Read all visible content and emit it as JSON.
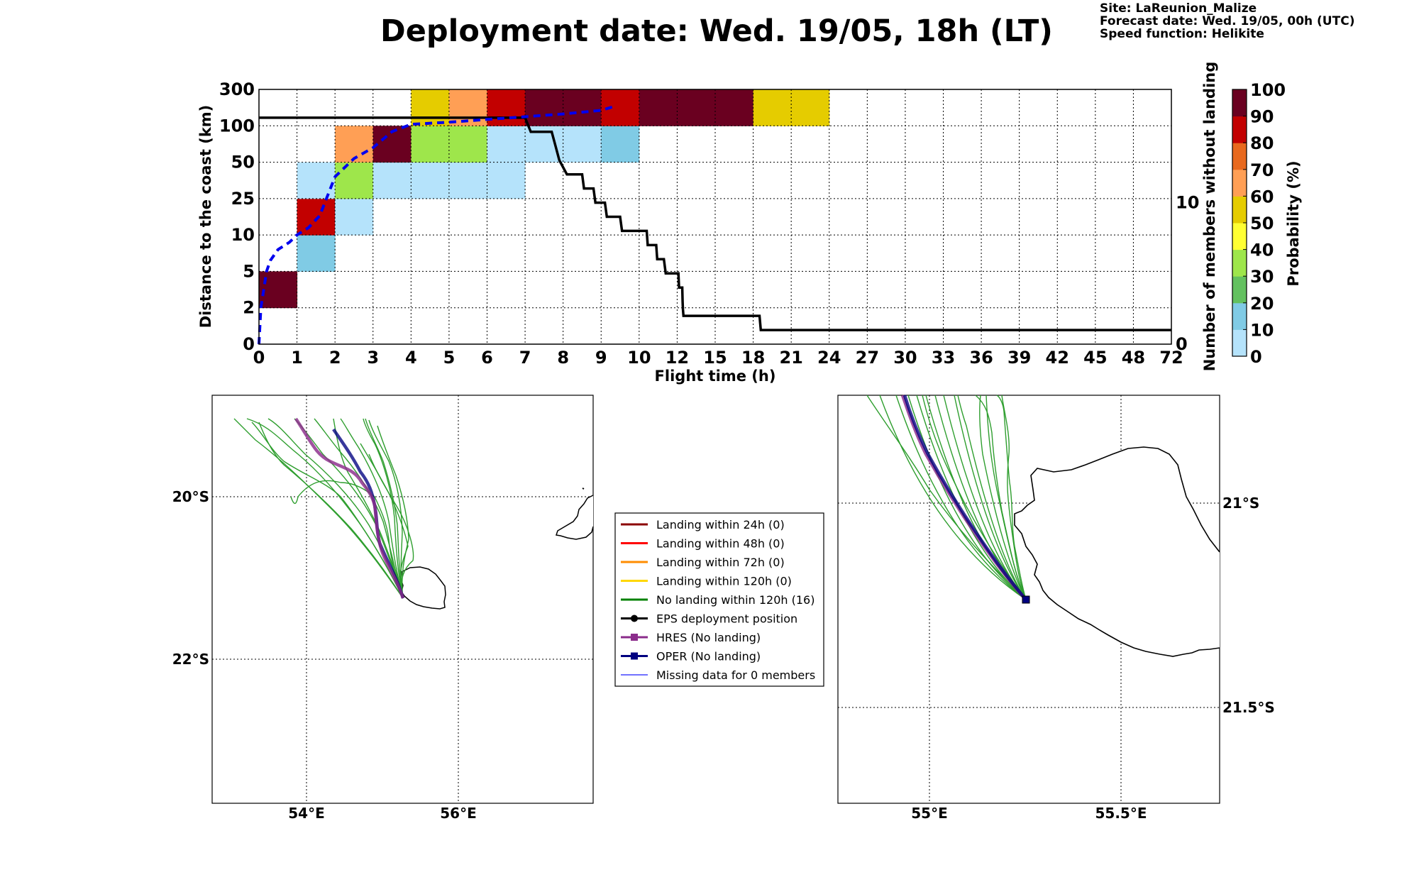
{
  "header": {
    "title": "Deployment date: Wed. 19/05, 18h (LT)",
    "site": "Site: LaReunion_Malize",
    "forecast": "Forecast date: Wed. 19/05, 00h (UTC)",
    "speed": "Speed function: Helikite"
  },
  "colors": {
    "blue_dashed": "#0000ee",
    "black_line": "#000000",
    "ens_green": "#2e9e2e",
    "hres": "#8b2c8b",
    "oper": "#000080",
    "bins": [
      "#b5e3fb",
      "#80cbe5",
      "#63c15f",
      "#9ee64b",
      "#ffff33",
      "#e5cc00",
      "#ff9f55",
      "#e8691e",
      "#c20000",
      "#6a0020"
    ]
  },
  "chart_data": [
    {
      "type": "heatmap",
      "xlabel": "Flight time (h)",
      "ylabel": "Distance to the coast (km)",
      "y2label": "Number of members without landing",
      "x_ticks": [
        "0",
        "1",
        "2",
        "3",
        "4",
        "5",
        "6",
        "7",
        "8",
        "9",
        "10",
        "12",
        "15",
        "18",
        "21",
        "24",
        "27",
        "30",
        "33",
        "36",
        "39",
        "42",
        "45",
        "48",
        "72"
      ],
      "y_ticks": [
        "0",
        "2",
        "5",
        "10",
        "25",
        "50",
        "100",
        "300"
      ],
      "y2_ticks": [
        "0",
        "10"
      ],
      "y2_range": [
        0,
        18
      ],
      "grid": true,
      "colorbar": {
        "label": "Probability (%)",
        "ticks": [
          "0",
          "10",
          "20",
          "30",
          "40",
          "50",
          "60",
          "70",
          "80",
          "90",
          "100"
        ]
      },
      "cells": [
        {
          "x_bin": 0,
          "y_bin": 1,
          "prob": 100
        },
        {
          "x_bin": 1,
          "y_bin": 2,
          "prob": 10
        },
        {
          "x_bin": 1,
          "y_bin": 3,
          "prob": 85
        },
        {
          "x_bin": 1,
          "y_bin": 4,
          "prob": 5
        },
        {
          "x_bin": 2,
          "y_bin": 3,
          "prob": 5
        },
        {
          "x_bin": 2,
          "y_bin": 4,
          "prob": 35
        },
        {
          "x_bin": 2,
          "y_bin": 5,
          "prob": 62
        },
        {
          "x_bin": 3,
          "y_bin": 4,
          "prob": 5
        },
        {
          "x_bin": 3,
          "y_bin": 5,
          "prob": 100
        },
        {
          "x_bin": 4,
          "y_bin": 4,
          "prob": 5
        },
        {
          "x_bin": 4,
          "y_bin": 5,
          "prob": 35
        },
        {
          "x_bin": 4,
          "y_bin": 6,
          "prob": 55
        },
        {
          "x_bin": 5,
          "y_bin": 4,
          "prob": 5
        },
        {
          "x_bin": 5,
          "y_bin": 5,
          "prob": 35
        },
        {
          "x_bin": 5,
          "y_bin": 6,
          "prob": 62
        },
        {
          "x_bin": 6,
          "y_bin": 4,
          "prob": 5
        },
        {
          "x_bin": 6,
          "y_bin": 5,
          "prob": 5
        },
        {
          "x_bin": 6,
          "y_bin": 6,
          "prob": 85
        },
        {
          "x_bin": 7,
          "y_bin": 5,
          "prob": 5
        },
        {
          "x_bin": 7,
          "y_bin": 6,
          "prob": 100
        },
        {
          "x_bin": 8,
          "y_bin": 5,
          "prob": 5
        },
        {
          "x_bin": 8,
          "y_bin": 6,
          "prob": 100
        },
        {
          "x_bin": 9,
          "y_bin": 5,
          "prob": 10
        },
        {
          "x_bin": 9,
          "y_bin": 6,
          "prob": 85
        },
        {
          "x_bin": 10,
          "y_bin": 6,
          "prob": 100
        },
        {
          "x_bin": 11,
          "y_bin": 6,
          "prob": 100
        },
        {
          "x_bin": 12,
          "y_bin": 6,
          "prob": 100
        },
        {
          "x_bin": 13,
          "y_bin": 6,
          "prob": 55
        },
        {
          "x_bin": 14,
          "y_bin": 6,
          "prob": 55
        }
      ],
      "eps_median_distance": [
        [
          0,
          0
        ],
        [
          0.05,
          2
        ],
        [
          0.1,
          3
        ],
        [
          0.2,
          5
        ],
        [
          0.3,
          6.5
        ],
        [
          0.5,
          8
        ],
        [
          0.8,
          9
        ],
        [
          1,
          10
        ],
        [
          1.3,
          13
        ],
        [
          1.6,
          18
        ],
        [
          2,
          40
        ],
        [
          2.5,
          55
        ],
        [
          3,
          70
        ],
        [
          3.5,
          92
        ],
        [
          4,
          108
        ],
        [
          5,
          120
        ],
        [
          6,
          135
        ],
        [
          7,
          150
        ],
        [
          8,
          165
        ],
        [
          9,
          185
        ],
        [
          9.4,
          210
        ]
      ],
      "members_without_landing": [
        [
          0,
          16
        ],
        [
          7,
          16
        ],
        [
          7.15,
          15
        ],
        [
          7.7,
          15
        ],
        [
          7.8,
          14
        ],
        [
          7.9,
          13
        ],
        [
          8.1,
          12
        ],
        [
          8.5,
          12
        ],
        [
          8.55,
          11
        ],
        [
          8.8,
          11
        ],
        [
          8.85,
          10
        ],
        [
          9.1,
          10
        ],
        [
          9.15,
          9
        ],
        [
          9.5,
          9
        ],
        [
          9.55,
          8
        ],
        [
          10.4,
          8
        ],
        [
          10.45,
          7
        ],
        [
          10.9,
          7
        ],
        [
          10.95,
          6
        ],
        [
          11.3,
          6
        ],
        [
          11.4,
          5
        ],
        [
          12.1,
          5
        ],
        [
          12.15,
          4
        ],
        [
          12.4,
          4
        ],
        [
          12.43,
          3
        ],
        [
          12.45,
          2.5
        ],
        [
          12.5,
          2
        ],
        [
          18.5,
          2
        ],
        [
          18.6,
          1
        ],
        [
          72,
          1
        ]
      ]
    },
    {
      "type": "map",
      "name": "left",
      "x_ticks": [
        "54°E",
        "56°E"
      ],
      "y_ticks": [
        "20°S",
        "22°S"
      ]
    },
    {
      "type": "map",
      "name": "right",
      "x_ticks": [
        "55°E",
        "55.5°E"
      ],
      "y_ticks": [
        "21°S",
        "21.5°S"
      ]
    }
  ],
  "legend": [
    {
      "label": "Landing within 24h (0)",
      "color": "#8b0000",
      "marker": ""
    },
    {
      "label": "Landing within 48h (0)",
      "color": "#ff0000",
      "marker": ""
    },
    {
      "label": "Landing within 72h (0)",
      "color": "#ff8c00",
      "marker": ""
    },
    {
      "label": "Landing within 120h (0)",
      "color": "#ffd700",
      "marker": ""
    },
    {
      "label": "No landing within 120h (16)",
      "color": "#008000",
      "marker": ""
    },
    {
      "label": "EPS deployment position",
      "color": "#000000",
      "marker": "circle"
    },
    {
      "label": "HRES (No landing)",
      "color": "#8b2c8b",
      "marker": "square"
    },
    {
      "label": "OPER (No landing)",
      "color": "#000080",
      "marker": "square"
    },
    {
      "label": "Missing data for 0 members",
      "color": "#4444ff",
      "marker": "thin"
    }
  ]
}
